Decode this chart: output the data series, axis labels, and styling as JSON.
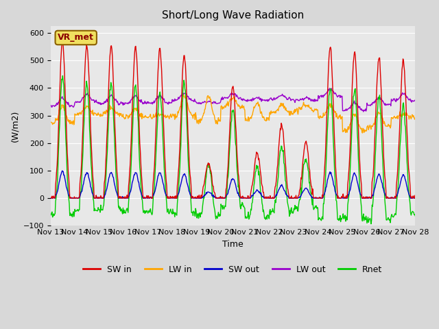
{
  "title": "Short/Long Wave Radiation",
  "ylabel": "(W/m2)",
  "xlabel": "Time",
  "ylim": [
    -100,
    625
  ],
  "annotation": "VR_met",
  "plot_bg_color": "#e8e8e8",
  "colors": {
    "SW_in": "#dd0000",
    "LW_in": "#ffa500",
    "SW_out": "#0000cc",
    "LW_out": "#9900cc",
    "Rnet": "#00cc00"
  },
  "x_tick_labels": [
    "Nov 13",
    "Nov 14",
    "Nov 15",
    "Nov 16",
    "Nov 17",
    "Nov 18",
    "Nov 19",
    "Nov 20",
    "Nov 21",
    "Nov 22",
    "Nov 23",
    "Nov 24",
    "Nov 25",
    "Nov 26",
    "Nov 27",
    "Nov 28"
  ],
  "n_days": 15,
  "n_points_per_day": 48,
  "sw_peaks": [
    570,
    555,
    555,
    550,
    545,
    520,
    130,
    410,
    165,
    270,
    205,
    550,
    530,
    510,
    500
  ],
  "lw_values": [
    275,
    305,
    305,
    295,
    295,
    300,
    280,
    330,
    285,
    310,
    320,
    295,
    245,
    260,
    295
  ],
  "lw_peak_factor": [
    335,
    330,
    330,
    325,
    300,
    370,
    370,
    365,
    345,
    340,
    340,
    340,
    305,
    310,
    305
  ],
  "lw_out_values": [
    335,
    350,
    345,
    345,
    345,
    355,
    345,
    360,
    355,
    360,
    355,
    370,
    320,
    340,
    355
  ]
}
